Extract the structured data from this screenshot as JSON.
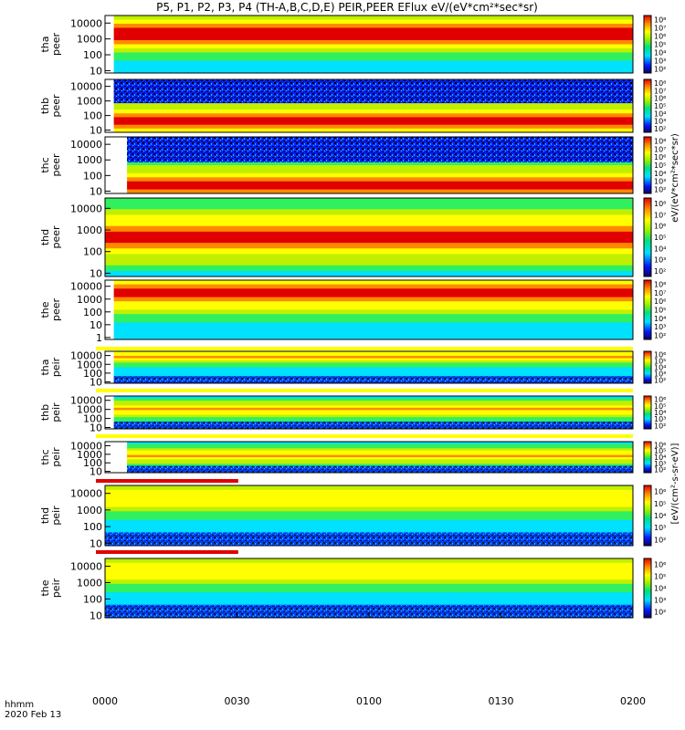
{
  "chart_data": {
    "type": "heatmap",
    "title": "P5, P1, P2, P3, P4 (TH-A,B,C,D,E) PEIR,PEER EFlux eV/(eV*cm²*sec*sr)",
    "xaxis": {
      "range": [
        "0000",
        "0200"
      ],
      "ticks": [
        "0000",
        "0030",
        "0100",
        "0130",
        "0200"
      ],
      "label_line1": "hhmm",
      "label_line2": "2020 Feb 13"
    },
    "colorbar_label_electron": "eV/(eV*cm²*sec*sr)",
    "colorbar_label_ion": "[eV/(cm²-s-sr-eV)]",
    "y_scale": "log",
    "y_unit": "eV",
    "panels": [
      {
        "id": "tha_peer",
        "line1": "tha",
        "line2": "peer",
        "yticks": [
          "10",
          "100",
          "1000",
          "10000"
        ],
        "cticks": [
          "10²",
          "10³",
          "10⁴",
          "10⁵",
          "10⁶",
          "10⁷",
          "10⁸"
        ],
        "dominant_energy_eV": 2000,
        "data_start_hhmm": "0002"
      },
      {
        "id": "thb_peer",
        "line1": "thb",
        "line2": "peer",
        "yticks": [
          "10",
          "100",
          "1000",
          "10000"
        ],
        "cticks": [
          "10²",
          "10³",
          "10⁴",
          "10⁵",
          "10⁶",
          "10⁷",
          "10⁸"
        ],
        "dominant_energy_eV": 40,
        "data_start_hhmm": "0002"
      },
      {
        "id": "thc_peer",
        "line1": "thc",
        "line2": "peer",
        "yticks": [
          "10",
          "100",
          "1000",
          "10000"
        ],
        "cticks": [
          "10²",
          "10³",
          "10⁴",
          "10⁵",
          "10⁶",
          "10⁷",
          "10⁸"
        ],
        "dominant_energy_eV": 20,
        "data_start_hhmm": "0005"
      },
      {
        "id": "thd_peer",
        "line1": "thd",
        "line2": "peer",
        "yticks": [
          "10",
          "100",
          "1000",
          "10000"
        ],
        "cticks": [
          "10²",
          "10³",
          "10⁴",
          "10⁵",
          "10⁶",
          "10⁷",
          "10⁸"
        ],
        "dominant_energy_eV": 500,
        "data_start_hhmm": "0000"
      },
      {
        "id": "the_peer",
        "line1": "the",
        "line2": "peer",
        "yticks": [
          "1",
          "10",
          "100",
          "1000",
          "10000"
        ],
        "cticks": [
          "10²",
          "10³",
          "10⁴",
          "10⁵",
          "10⁶",
          "10⁷",
          "10⁸"
        ],
        "dominant_energy_eV": 3000,
        "data_start_hhmm": "0002"
      },
      {
        "id": "tha_peir",
        "line1": "tha",
        "line2": "peir",
        "yticks": [
          "10",
          "100",
          "1000",
          "10000"
        ],
        "cticks": [
          "10²",
          "10³",
          "10⁴",
          "10⁵",
          "10⁶"
        ],
        "dominant_energy_eV": 8000,
        "data_start_hhmm": "0002"
      },
      {
        "id": "thb_peir",
        "line1": "thb",
        "line2": "peir",
        "yticks": [
          "10",
          "100",
          "1000",
          "10000"
        ],
        "cticks": [
          "10²",
          "10³",
          "10⁴",
          "10⁵",
          "10⁶"
        ],
        "dominant_energy_eV": 1000,
        "data_start_hhmm": "0002"
      },
      {
        "id": "thc_peir",
        "line1": "thc",
        "line2": "peir",
        "yticks": [
          "10",
          "100",
          "1000",
          "10000"
        ],
        "cticks": [
          "10²",
          "10³",
          "10⁴",
          "10⁵",
          "10⁶"
        ],
        "dominant_energy_eV": 700,
        "data_start_hhmm": "0005"
      },
      {
        "id": "thd_peir",
        "line1": "thd",
        "line2": "peir",
        "yticks": [
          "10",
          "100",
          "1000",
          "10000"
        ],
        "cticks": [
          "10²",
          "10³",
          "10⁴",
          "10⁵",
          "10⁶"
        ],
        "dominant_energy_eV": 5000,
        "data_start_hhmm": "0000"
      },
      {
        "id": "the_peir",
        "line1": "the",
        "line2": "peir",
        "yticks": [
          "10",
          "100",
          "1000",
          "10000"
        ],
        "cticks": [
          "10²",
          "10³",
          "10⁴",
          "10⁵",
          "10⁶"
        ],
        "dominant_energy_eV": 5000,
        "data_start_hhmm": "0000"
      }
    ]
  }
}
